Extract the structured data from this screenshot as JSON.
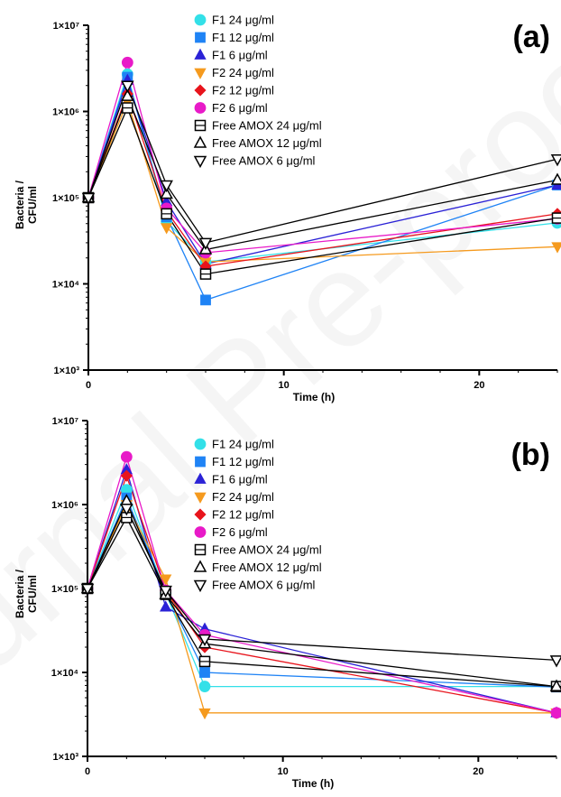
{
  "chart_data": [
    {
      "type": "line",
      "panel_label": "(a)",
      "title": "",
      "xlabel": "Time (h)",
      "ylabel_lines": [
        "Bacteria /",
        "CFU/ml"
      ],
      "x_ticks": [
        "0",
        "10",
        "20"
      ],
      "x_tick_values": [
        0,
        10,
        20
      ],
      "y_ticks": [
        "1×10⁷",
        "1×10⁶",
        "1×10⁵",
        "1×10⁴",
        "1×10³"
      ],
      "y_tick_values": [
        10000000,
        1000000,
        100000,
        10000,
        1000
      ],
      "y_scale": "log",
      "xlim": [
        0,
        24
      ],
      "ylim": [
        1000,
        10000000
      ],
      "grid": false,
      "legend_position": "top-center",
      "x": [
        0,
        2,
        4,
        6,
        24
      ],
      "series": [
        {
          "name": "F1 24 μg/ml",
          "values": [
            100000,
            2700000,
            53000,
            18000,
            51000
          ]
        },
        {
          "name": "F1 12 μg/ml",
          "values": [
            100000,
            2500000,
            60000,
            6500,
            140000
          ]
        },
        {
          "name": "F1 6 μg/ml",
          "values": [
            100000,
            2300000,
            90000,
            17000,
            140000
          ]
        },
        {
          "name": "F2 24 μg/ml",
          "values": [
            100000,
            1300000,
            45000,
            18000,
            27000
          ]
        },
        {
          "name": "F2 12 μg/ml",
          "values": [
            100000,
            1600000,
            70000,
            16000,
            65000
          ]
        },
        {
          "name": "F2 6 μg/ml",
          "values": [
            100000,
            3700000,
            75000,
            23000,
            57000
          ]
        },
        {
          "name": "Free AMOX 24 μg/ml",
          "values": [
            100000,
            1100000,
            65000,
            13000,
            58000
          ]
        },
        {
          "name": "Free AMOX 12 μg/ml",
          "values": [
            100000,
            1500000,
            110000,
            25000,
            160000
          ]
        },
        {
          "name": "Free AMOX 6 μg/ml",
          "values": [
            100000,
            2000000,
            140000,
            30000,
            280000
          ]
        }
      ]
    },
    {
      "type": "line",
      "panel_label": "(b)",
      "title": "",
      "xlabel": "Time (h)",
      "ylabel_lines": [
        "Bacteria /",
        "CFU/ml"
      ],
      "x_ticks": [
        "0",
        "10",
        "20"
      ],
      "x_tick_values": [
        0,
        10,
        20
      ],
      "y_ticks": [
        "1×10⁷",
        "1×10⁶",
        "1×10⁵",
        "1×10⁴",
        "1×10³"
      ],
      "y_tick_values": [
        10000000,
        1000000,
        100000,
        10000,
        1000
      ],
      "y_scale": "log",
      "xlim": [
        0,
        24
      ],
      "ylim": [
        1000,
        10000000
      ],
      "grid": false,
      "legend_position": "top-center",
      "x": [
        0,
        2,
        4,
        6,
        24
      ],
      "series": [
        {
          "name": "F1 24 μg/ml",
          "values": [
            100000,
            1500000,
            88000,
            6800,
            6800
          ]
        },
        {
          "name": "F1 12 μg/ml",
          "values": [
            100000,
            1200000,
            90000,
            10000,
            6700
          ]
        },
        {
          "name": "F1 6 μg/ml",
          "values": [
            100000,
            2600000,
            60000,
            33000,
            3300
          ]
        },
        {
          "name": "F2 24 μg/ml",
          "values": [
            100000,
            1000000,
            130000,
            3300,
            3300
          ]
        },
        {
          "name": "F2 12 μg/ml",
          "values": [
            100000,
            2200000,
            95000,
            20000,
            3300
          ]
        },
        {
          "name": "F2 6 μg/ml",
          "values": [
            100000,
            3700000,
            95000,
            28000,
            3300
          ]
        },
        {
          "name": "Free AMOX 24 μg/ml",
          "values": [
            100000,
            700000,
            85000,
            13500,
            6800
          ]
        },
        {
          "name": "Free AMOX 12 μg/ml",
          "values": [
            100000,
            1100000,
            85000,
            22000,
            6800
          ]
        },
        {
          "name": "Free AMOX 6 μg/ml",
          "values": [
            100000,
            900000,
            95000,
            25000,
            14000
          ]
        }
      ]
    }
  ],
  "series_styles": [
    {
      "color": "#33e0e8",
      "marker": "circle",
      "fill": true
    },
    {
      "color": "#1f83f5",
      "marker": "square",
      "fill": true
    },
    {
      "color": "#2b22d6",
      "marker": "triangle-up",
      "fill": true
    },
    {
      "color": "#f59a1e",
      "marker": "triangle-down",
      "fill": true
    },
    {
      "color": "#e8141c",
      "marker": "diamond",
      "fill": true
    },
    {
      "color": "#e81ac8",
      "marker": "circle",
      "fill": true
    },
    {
      "color": "#000000",
      "marker": "square-line",
      "fill": false
    },
    {
      "color": "#000000",
      "marker": "triangle-up",
      "fill": false
    },
    {
      "color": "#000000",
      "marker": "triangle-down",
      "fill": false
    }
  ]
}
